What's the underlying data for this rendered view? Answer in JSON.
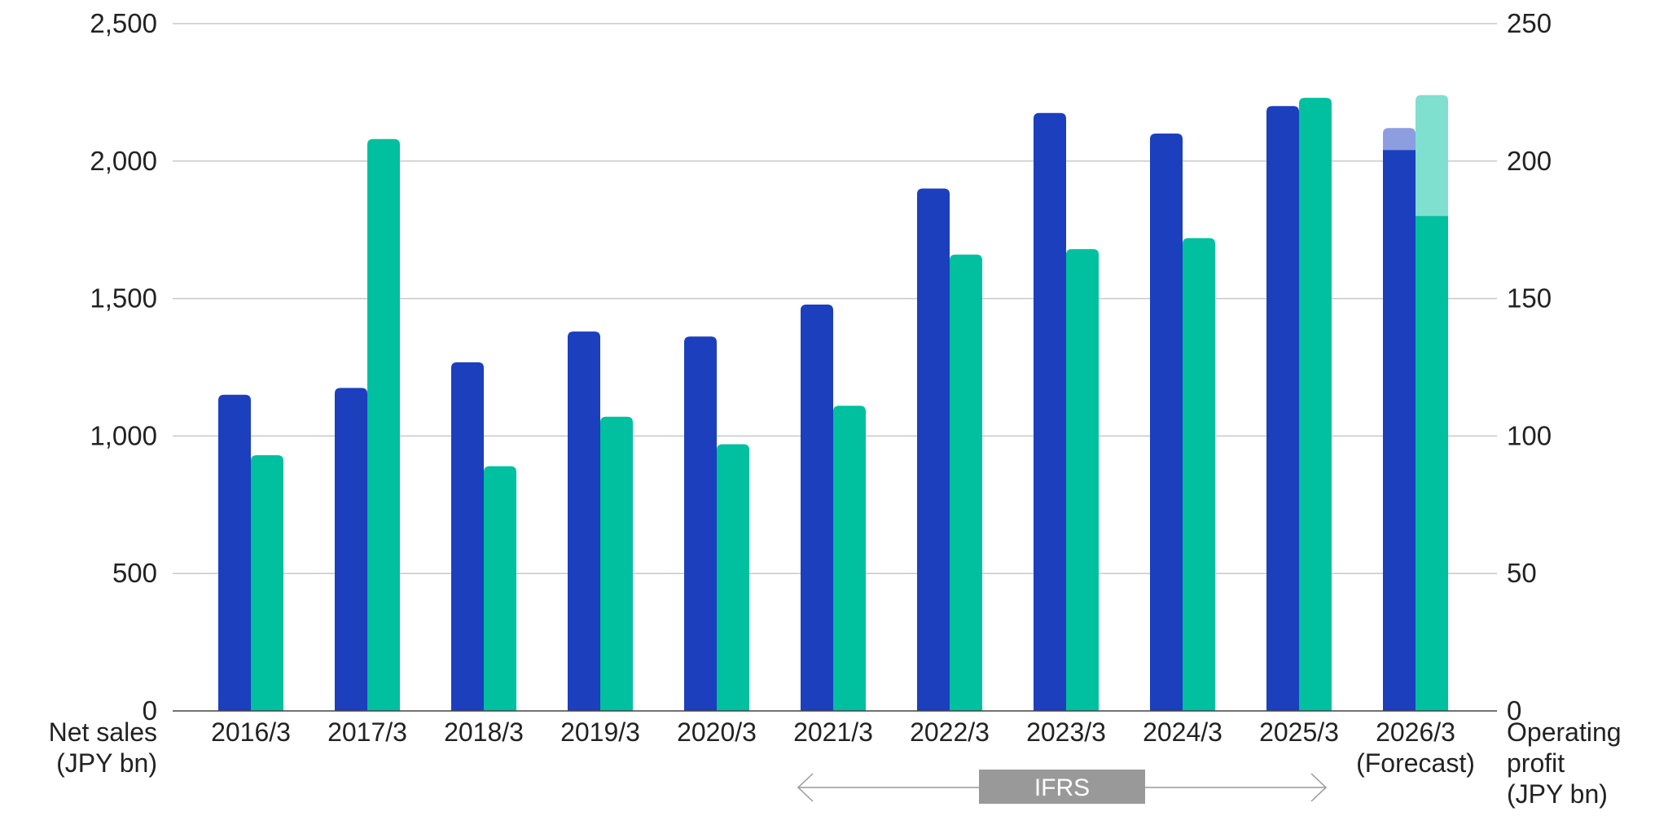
{
  "chart_data": {
    "type": "bar",
    "categories": [
      "2016/3",
      "2017/3",
      "2018/3",
      "2019/3",
      "2020/3",
      "2021/3",
      "2022/3",
      "2023/3",
      "2024/3",
      "2025/3",
      "2026/3"
    ],
    "category_sublabels": [
      "",
      "",
      "",
      "",
      "",
      "",
      "",
      "",
      "",
      "",
      "(Forecast)"
    ],
    "series": [
      {
        "axis": "left",
        "color": "#1b3fbd",
        "forecast_color": "#8c9de0",
        "values": [
          1150,
          1175,
          1268,
          1380,
          1362,
          1478,
          1900,
          2175,
          2100,
          2200,
          2120
        ],
        "forecast_base": [
          null,
          null,
          null,
          null,
          null,
          null,
          null,
          null,
          null,
          null,
          2040
        ]
      },
      {
        "axis": "right",
        "color": "#00c0a0",
        "forecast_color": "#7fe0cf",
        "values": [
          93,
          208,
          89,
          107,
          97,
          111,
          166,
          168,
          172,
          223,
          224
        ],
        "forecast_base": [
          null,
          null,
          null,
          null,
          null,
          null,
          null,
          null,
          null,
          null,
          180
        ]
      }
    ],
    "y_left": {
      "ticks": [
        "2,500",
        "2,000",
        "1,500",
        "1,000",
        "500",
        "0"
      ],
      "tick_values": [
        2500,
        2000,
        1500,
        1000,
        500,
        0
      ],
      "range": [
        0,
        2500
      ],
      "label_line1": "Net sales",
      "label_line2": "(JPY bn)"
    },
    "y_right": {
      "ticks": [
        "250",
        "200",
        "150",
        "100",
        "50",
        "0"
      ],
      "tick_values": [
        250,
        200,
        150,
        100,
        50,
        0
      ],
      "range": [
        0,
        250
      ],
      "label_line1": "Operating",
      "label_line2": "profit",
      "label_line3": "(JPY bn)"
    },
    "annotation": {
      "text": "IFRS",
      "from_category": "2021/3",
      "to_category": "2025/3",
      "color": "#999999"
    },
    "grid": true
  }
}
